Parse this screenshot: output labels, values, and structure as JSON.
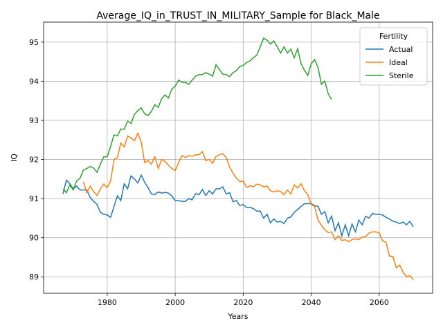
{
  "chart_data": {
    "type": "line",
    "title": "Average_IQ_in_TRUST_IN_MILITARY_Sample for Black_Male",
    "x_label": "Years",
    "y_label": "IQ",
    "x": [
      1967,
      1968,
      1969,
      1970,
      1971,
      1972,
      1973,
      1974,
      1975,
      1976,
      1977,
      1978,
      1979,
      1980,
      1981,
      1982,
      1983,
      1984,
      1985,
      1986,
      1987,
      1988,
      1989,
      1990,
      1991,
      1992,
      1993,
      1994,
      1995,
      1996,
      1997,
      1998,
      1999,
      2000,
      2001,
      2002,
      2003,
      2004,
      2005,
      2006,
      2007,
      2008,
      2009,
      2010,
      2011,
      2012,
      2013,
      2014,
      2015,
      2016,
      2017,
      2018,
      2019,
      2020,
      2021,
      2022,
      2023,
      2024,
      2025,
      2026,
      2027,
      2028,
      2029,
      2030,
      2031,
      2032,
      2033,
      2034,
      2035,
      2036,
      2037,
      2038,
      2039,
      2040,
      2041,
      2042,
      2043,
      2044,
      2045,
      2046,
      2047,
      2048,
      2049,
      2050,
      2051,
      2052,
      2053,
      2054,
      2055,
      2056,
      2057,
      2058,
      2059,
      2060,
      2061,
      2062,
      2063,
      2064,
      2065,
      2066,
      2067,
      2068,
      2069,
      2070
    ],
    "series": [
      {
        "name": "Actual",
        "color": "#1f77b4",
        "values": [
          91.12,
          91.47,
          91.38,
          91.25,
          91.32,
          91.22,
          91.22,
          91.22,
          91.03,
          90.93,
          90.85,
          90.65,
          90.6,
          90.58,
          90.52,
          90.8,
          91.07,
          90.95,
          91.38,
          91.25,
          91.58,
          91.5,
          91.4,
          91.6,
          91.42,
          91.28,
          91.12,
          91.1,
          91.17,
          91.14,
          91.16,
          91.14,
          91.07,
          90.95,
          90.95,
          90.93,
          90.93,
          91.0,
          90.97,
          91.13,
          91.1,
          91.23,
          91.08,
          91.2,
          91.12,
          91.25,
          91.25,
          91.3,
          91.12,
          91.15,
          90.92,
          90.95,
          90.82,
          90.85,
          90.77,
          90.78,
          90.74,
          90.68,
          90.68,
          90.5,
          90.6,
          90.38,
          90.48,
          90.4,
          90.42,
          90.36,
          90.5,
          90.53,
          90.65,
          90.72,
          90.8,
          90.87,
          90.87,
          90.87,
          90.82,
          90.8,
          90.6,
          90.67,
          90.38,
          90.55,
          90.18,
          90.38,
          90.05,
          90.33,
          90.05,
          90.35,
          90.15,
          90.45,
          90.33,
          90.55,
          90.5,
          90.62,
          90.6,
          90.6,
          90.58,
          90.52,
          90.48,
          90.42,
          90.4,
          90.36,
          90.4,
          90.33,
          90.42,
          90.28
        ]
      },
      {
        "name": "Ideal",
        "color": "#ff7f0e",
        "values": [
          null,
          null,
          null,
          null,
          null,
          null,
          91.43,
          91.15,
          91.32,
          91.18,
          91.08,
          91.25,
          91.37,
          91.28,
          91.45,
          92.0,
          92.05,
          92.42,
          92.32,
          92.6,
          92.55,
          92.48,
          92.67,
          92.45,
          91.92,
          91.97,
          91.88,
          92.07,
          91.77,
          92.0,
          91.95,
          91.85,
          91.77,
          91.72,
          91.92,
          92.1,
          92.05,
          92.1,
          92.08,
          92.12,
          92.12,
          92.2,
          91.97,
          92.0,
          91.9,
          92.08,
          92.12,
          92.15,
          92.05,
          91.8,
          91.65,
          91.52,
          91.43,
          91.45,
          91.28,
          91.33,
          91.3,
          91.37,
          91.35,
          91.3,
          91.32,
          91.2,
          91.17,
          91.2,
          91.18,
          91.1,
          91.22,
          91.12,
          91.35,
          91.27,
          91.38,
          91.2,
          91.1,
          90.85,
          90.8,
          90.45,
          90.32,
          90.2,
          90.13,
          90.15,
          89.95,
          90.05,
          89.93,
          89.95,
          89.9,
          89.95,
          89.97,
          89.95,
          90.02,
          90.03,
          90.12,
          90.15,
          90.15,
          90.12,
          89.92,
          89.88,
          89.53,
          89.52,
          89.23,
          89.3,
          89.12,
          89.0,
          89.03,
          88.93
        ]
      },
      {
        "name": "Sterile",
        "color": "#2ca02c",
        "values": [
          91.25,
          91.15,
          91.35,
          91.22,
          91.45,
          91.52,
          91.73,
          91.77,
          91.82,
          91.78,
          91.67,
          91.88,
          92.07,
          92.07,
          92.33,
          92.63,
          92.6,
          92.78,
          92.77,
          92.98,
          92.92,
          93.15,
          93.25,
          93.32,
          93.17,
          93.12,
          93.23,
          93.4,
          93.33,
          93.55,
          93.65,
          93.57,
          93.8,
          93.87,
          94.03,
          93.97,
          93.97,
          93.92,
          94.03,
          94.13,
          94.17,
          94.17,
          94.22,
          94.18,
          94.13,
          94.42,
          94.3,
          94.18,
          94.17,
          94.12,
          94.22,
          94.27,
          94.38,
          94.4,
          94.48,
          94.52,
          94.6,
          94.67,
          94.88,
          95.1,
          95.05,
          94.95,
          95.03,
          94.88,
          94.72,
          94.88,
          94.72,
          94.82,
          94.6,
          94.83,
          94.45,
          94.28,
          94.15,
          94.45,
          94.55,
          94.35,
          93.92,
          94.0,
          93.68,
          93.53,
          null,
          null,
          null,
          null,
          null,
          null,
          null,
          null,
          null,
          null,
          null,
          null,
          null,
          null,
          null,
          null,
          null,
          null,
          null,
          null,
          null,
          null,
          null,
          null
        ]
      }
    ],
    "xlim": [
      1961.3,
      2075.7
    ],
    "ylim": [
      88.58,
      95.51
    ],
    "xticks": [
      1980,
      2000,
      2020,
      2040,
      2060
    ],
    "yticks": [
      89,
      90,
      91,
      92,
      93,
      94,
      95
    ],
    "grid": true,
    "legend_title": "Fertility",
    "legend_position": "upper right"
  }
}
